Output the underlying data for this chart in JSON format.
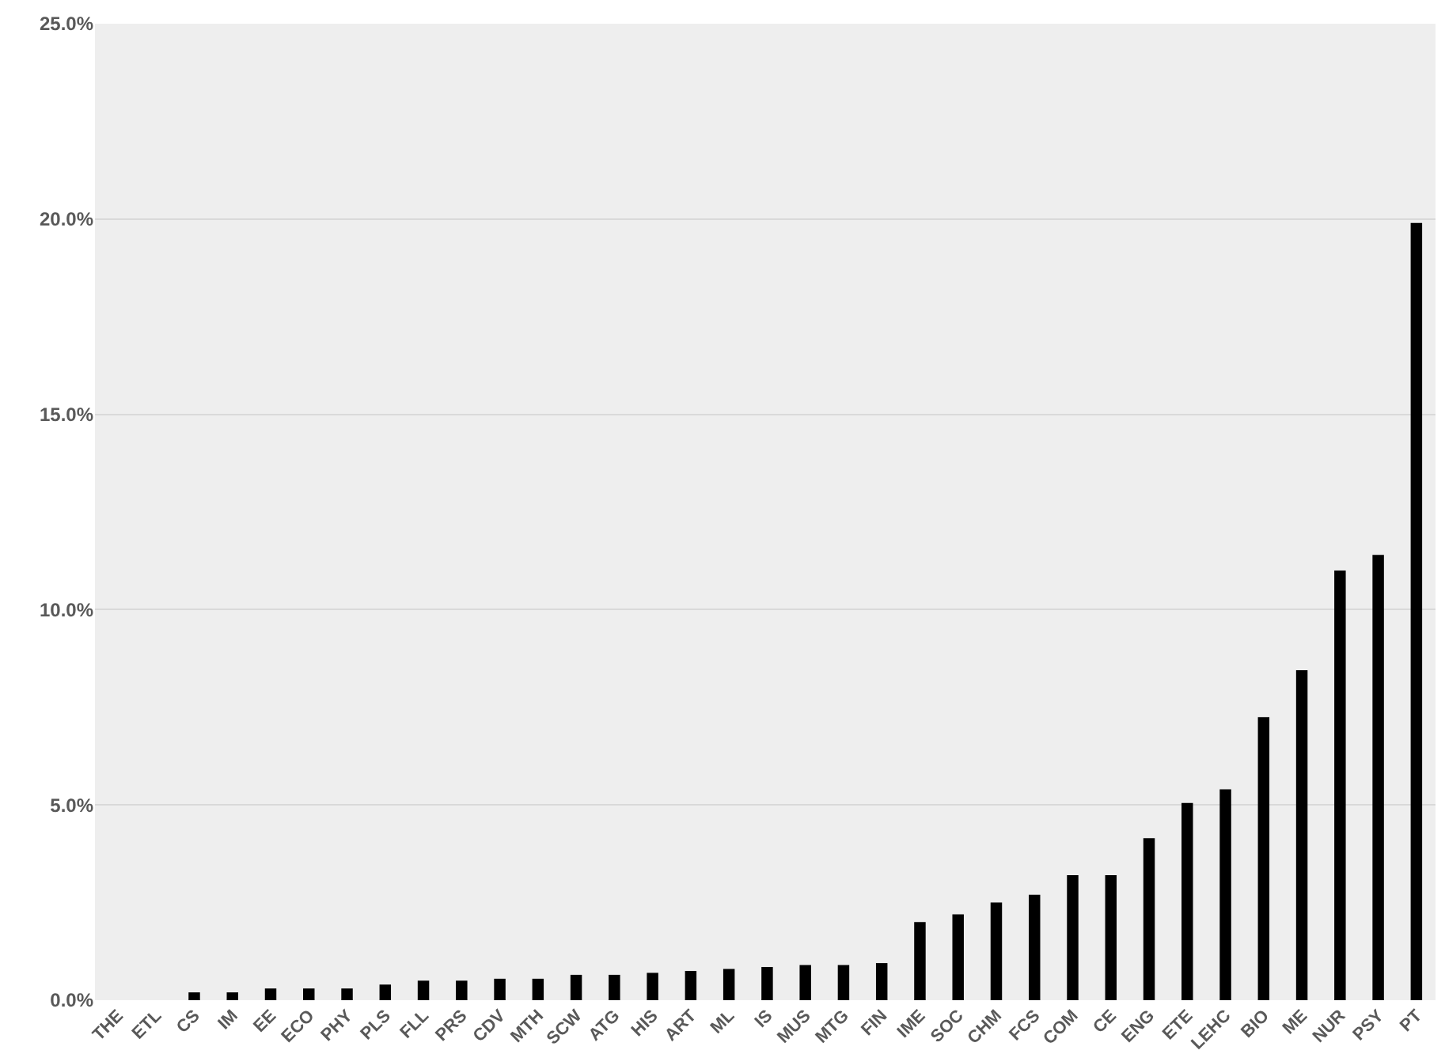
{
  "chart_data": {
    "type": "bar",
    "categories": [
      "THE",
      "ETL",
      "CS",
      "IM",
      "EE",
      "ECO",
      "PHY",
      "PLS",
      "FLL",
      "PRS",
      "CDV",
      "MTH",
      "SCW",
      "ATG",
      "HIS",
      "ART",
      "ML",
      "IS",
      "MUS",
      "MTG",
      "FIN",
      "IME",
      "SOC",
      "CHM",
      "FCS",
      "COM",
      "CE",
      "ENG",
      "ETE",
      "LEHC",
      "BIO",
      "ME",
      "NUR",
      "PSY",
      "PT"
    ],
    "values": [
      0,
      0,
      0.2,
      0.2,
      0.3,
      0.3,
      0.3,
      0.4,
      0.5,
      0.5,
      0.55,
      0.55,
      0.65,
      0.65,
      0.7,
      0.75,
      0.8,
      0.85,
      0.9,
      0.9,
      0.95,
      2.0,
      2.2,
      2.5,
      2.7,
      3.2,
      3.2,
      4.15,
      5.05,
      5.4,
      7.25,
      8.45,
      11.0,
      11.4,
      19.9
    ],
    "color": "#000000",
    "ylim": [
      0,
      25
    ],
    "yticks": [
      {
        "value": 0,
        "label": "0.0%"
      },
      {
        "value": 5,
        "label": "5.0%"
      },
      {
        "value": 10,
        "label": "10.0%"
      },
      {
        "value": 15,
        "label": "15.0%"
      },
      {
        "value": 20,
        "label": "20.0%"
      },
      {
        "value": 25,
        "label": "25.0%"
      }
    ],
    "grid": "y"
  }
}
